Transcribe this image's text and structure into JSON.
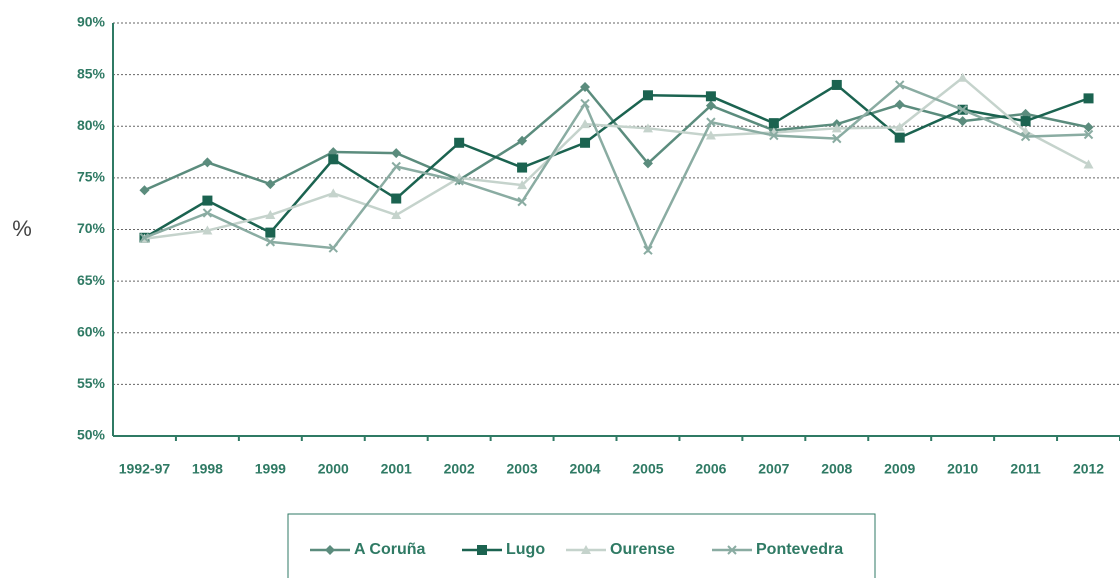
{
  "chart_data": {
    "type": "line",
    "y_label": "%",
    "categories": [
      "1992-97",
      "1998",
      "1999",
      "2000",
      "2001",
      "2002",
      "2003",
      "2004",
      "2005",
      "2006",
      "2007",
      "2008",
      "2009",
      "2010",
      "2011",
      "2012"
    ],
    "series": [
      {
        "name": "A Coruña",
        "color": "#5b8c7d",
        "marker": "diamond",
        "values": [
          73.8,
          76.5,
          74.4,
          77.5,
          77.4,
          74.8,
          78.6,
          83.8,
          76.4,
          82.0,
          79.6,
          80.2,
          82.1,
          80.5,
          81.2,
          79.9
        ]
      },
      {
        "name": "Lugo",
        "color": "#1b6350",
        "marker": "square",
        "values": [
          69.2,
          72.8,
          69.7,
          76.8,
          73.0,
          78.4,
          76.0,
          78.4,
          83.0,
          82.9,
          80.3,
          84.0,
          78.9,
          81.6,
          80.5,
          82.7
        ]
      },
      {
        "name": "Ourense",
        "color": "#c5d3cc",
        "marker": "triangle",
        "values": [
          69.1,
          69.9,
          71.4,
          73.5,
          71.4,
          75.0,
          74.3,
          80.2,
          79.8,
          79.1,
          79.4,
          79.8,
          79.9,
          84.7,
          79.5,
          76.3
        ]
      },
      {
        "name": "Pontevedra",
        "color": "#8aaca2",
        "marker": "x",
        "values": [
          69.2,
          71.6,
          68.8,
          68.2,
          76.1,
          74.7,
          72.7,
          82.2,
          68.0,
          80.4,
          79.1,
          78.8,
          84.0,
          81.6,
          79.0,
          79.2
        ]
      }
    ],
    "ylim": [
      50,
      90
    ],
    "yticks": [
      {
        "value": 50,
        "label": "50%"
      },
      {
        "value": 55,
        "label": "55%"
      },
      {
        "value": 60,
        "label": "60%"
      },
      {
        "value": 65,
        "label": "65%"
      },
      {
        "value": 70,
        "label": "70%"
      },
      {
        "value": 75,
        "label": "75%"
      },
      {
        "value": 80,
        "label": "80%"
      },
      {
        "value": 85,
        "label": "85%"
      },
      {
        "value": 90,
        "label": "90%"
      }
    ],
    "grid": true,
    "legend": "bottom"
  }
}
